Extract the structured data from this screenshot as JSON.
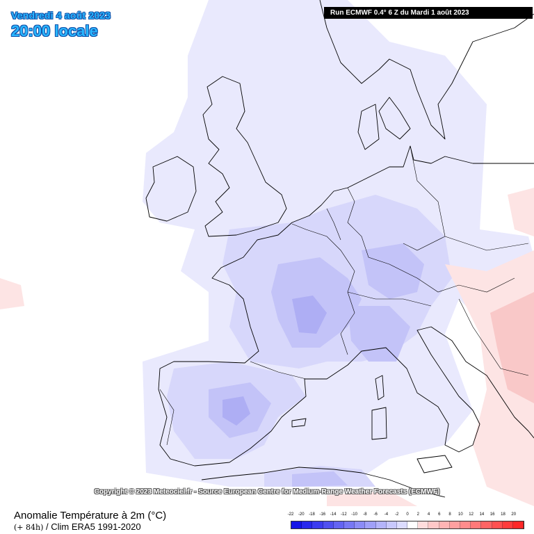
{
  "header": {
    "date": "Vendredi 4 août 2023",
    "time": "20:00 locale",
    "run": "Run ECMWF 0.4° 6 Z du Mardi 1 août 2023"
  },
  "copyright": "Copyright © 2023 Meteociel.fr - Source European Centre for Medium-Range Weather Forecasts (ECMWF)",
  "footer": {
    "title": "Anomalie Température à 2m (°C)",
    "lead_time": "(+ 84h)",
    "clim": "/ Clim ERA5 1991-2020"
  },
  "legend": {
    "labels": [
      "-22",
      "-20",
      "-18",
      "-16",
      "-14",
      "-12",
      "-10",
      "-8",
      "-6",
      "-4",
      "-2",
      "0",
      "2",
      "4",
      "6",
      "8",
      "10",
      "12",
      "14",
      "16",
      "18",
      "20"
    ],
    "colors": [
      "#1414e6",
      "#2828ec",
      "#3c3cef",
      "#5050f0",
      "#6464f2",
      "#7878f4",
      "#8c8cf6",
      "#a0a0f8",
      "#b4b4fa",
      "#c8c8fc",
      "#dcdcfe",
      "#ffffff",
      "#ffdcdc",
      "#ffc8c8",
      "#ffb4b4",
      "#ffa0a0",
      "#ff8c8c",
      "#ff7878",
      "#ff6464",
      "#ff5050",
      "#ff3c3c",
      "#ff2828"
    ]
  },
  "map": {
    "ocean_color": "#ffffff",
    "cold_colors": [
      "#e9e9fd",
      "#d7d7fb",
      "#c3c3f8",
      "#aeaef4"
    ],
    "warm_colors": [
      "#fde4e4",
      "#f9c8c8"
    ]
  }
}
